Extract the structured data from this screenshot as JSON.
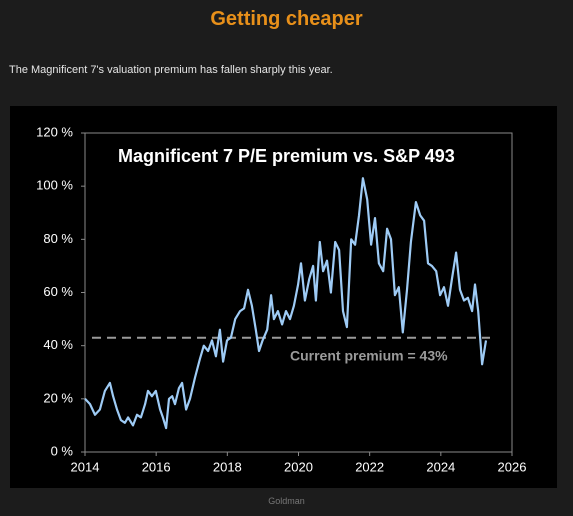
{
  "header": {
    "title": "Getting cheaper",
    "subtitle": "The Magnificent 7's valuation premium has fallen sharply this year."
  },
  "chart_data": {
    "type": "line",
    "title": "Magnificent 7 P/E premium vs. S&P 493",
    "x": [
      2014.0,
      2014.14,
      2014.28,
      2014.42,
      2014.56,
      2014.7,
      2014.79,
      2014.9,
      2015.01,
      2015.12,
      2015.21,
      2015.35,
      2015.46,
      2015.57,
      2015.69,
      2015.77,
      2015.88,
      2015.99,
      2016.11,
      2016.19,
      2016.28,
      2016.36,
      2016.45,
      2016.53,
      2016.64,
      2016.73,
      2016.84,
      2016.95,
      2017.09,
      2017.23,
      2017.34,
      2017.46,
      2017.57,
      2017.68,
      2017.79,
      2017.88,
      2017.99,
      2018.1,
      2018.22,
      2018.36,
      2018.47,
      2018.58,
      2018.69,
      2018.8,
      2018.89,
      2018.99,
      2019.12,
      2019.23,
      2019.31,
      2019.42,
      2019.54,
      2019.65,
      2019.76,
      2019.87,
      2019.99,
      2020.07,
      2020.18,
      2020.3,
      2020.41,
      2020.49,
      2020.6,
      2020.69,
      2020.8,
      2020.91,
      2021.03,
      2021.14,
      2021.25,
      2021.36,
      2021.48,
      2021.59,
      2021.7,
      2021.81,
      2021.93,
      2022.04,
      2022.15,
      2022.26,
      2022.38,
      2022.49,
      2022.6,
      2022.71,
      2022.82,
      2022.93,
      2023.05,
      2023.16,
      2023.3,
      2023.42,
      2023.53,
      2023.64,
      2023.75,
      2023.87,
      2023.98,
      2024.09,
      2024.2,
      2024.31,
      2024.43,
      2024.54,
      2024.65,
      2024.76,
      2024.88,
      2024.96,
      2025.05,
      2025.16,
      2025.27
    ],
    "series": [
      {
        "color": "#9ecbf5",
        "values": [
          20,
          18,
          14,
          16,
          23,
          26,
          21,
          16,
          12,
          11,
          13,
          10,
          14,
          13,
          18,
          23,
          21,
          23,
          16,
          13,
          9,
          20,
          21,
          18,
          24,
          26,
          16,
          20,
          28,
          35,
          40,
          38,
          42,
          36,
          46,
          34,
          42,
          43,
          50,
          53,
          54,
          61,
          55,
          46,
          38,
          42,
          46,
          59,
          50,
          53,
          48,
          53,
          50,
          55,
          63,
          71,
          57,
          65,
          70,
          57,
          79,
          68,
          72,
          60,
          79,
          76,
          53,
          47,
          80,
          78,
          89,
          103,
          95,
          78,
          88,
          71,
          68,
          84,
          80,
          59,
          62,
          45,
          61,
          79,
          94,
          89,
          87,
          71,
          70,
          68,
          59,
          62,
          55,
          65,
          75,
          61,
          57,
          58,
          53,
          63,
          53,
          33,
          42
        ]
      }
    ],
    "reference_line": {
      "value": 43,
      "label": "Current premium = 43%",
      "color": "#9a9a9a"
    },
    "xlim": [
      2014,
      2026
    ],
    "xticks": [
      2014,
      2016,
      2018,
      2020,
      2022,
      2024,
      2026
    ],
    "ylim": [
      0,
      120
    ],
    "yticks": [
      {
        "value": 0,
        "label": "0 %"
      },
      {
        "value": 20,
        "label": "20 %"
      },
      {
        "value": 40,
        "label": "40 %"
      },
      {
        "value": 60,
        "label": "60 %"
      },
      {
        "value": 80,
        "label": "80 %"
      },
      {
        "value": 100,
        "label": "100 %"
      },
      {
        "value": 120,
        "label": "120 %"
      }
    ],
    "grid": false
  },
  "footer": {
    "source": "Goldman"
  }
}
